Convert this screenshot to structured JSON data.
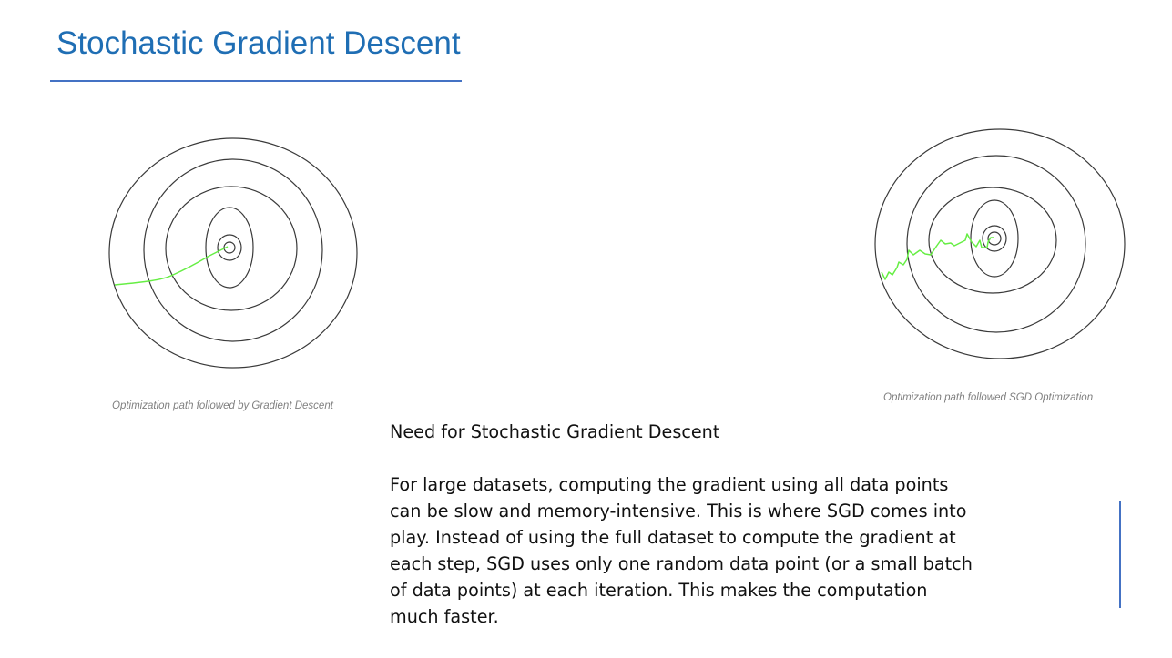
{
  "slide": {
    "title": "Stochastic Gradient Descent"
  },
  "diagrams": {
    "gradient_descent": {
      "caption": "Optimization path followed by Gradient Descent",
      "path_color": "#66EE44",
      "contour_color": "#3A3A3A",
      "path_style": "smooth"
    },
    "sgd": {
      "caption": "Optimization path followed SGD Optimization",
      "path_color": "#66EE44",
      "contour_color": "#3A3A3A",
      "path_style": "zigzag"
    }
  },
  "body_text": {
    "heading": "Need for Stochastic Gradient Descent",
    "paragraph": "For large datasets, computing the gradient using all data points can be slow and memory-intensive. This is where SGD comes into play. Instead of using the full dataset to compute the gradient at each step, SGD uses only one random data point (or a small batch of data points) at each iteration. This makes the computation much faster."
  },
  "colors": {
    "title": "#1F6EB4",
    "accent_rule": "#4472C4",
    "caption": "#808080"
  }
}
